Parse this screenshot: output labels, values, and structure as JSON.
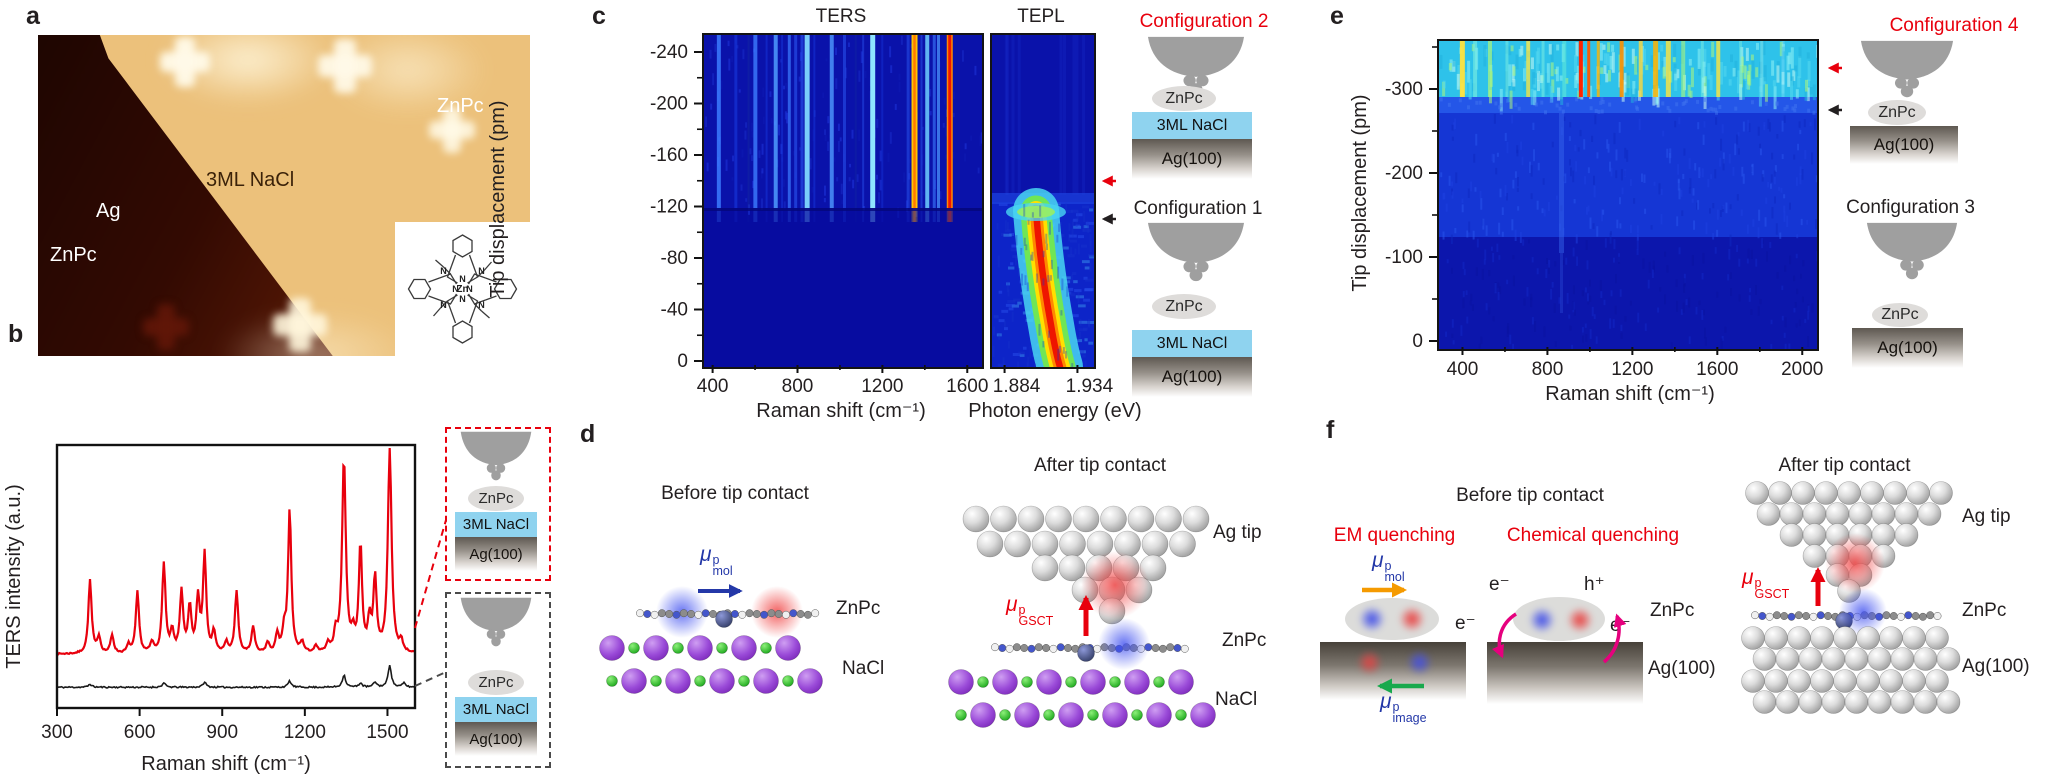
{
  "colors": {
    "accent_red": "#e8000d",
    "mu_blue": "#2438a8",
    "arrow_orange": "#f59a00",
    "arrow_green": "#18a94d",
    "arrow_magenta": "#e6007e",
    "nacl_blue": "#8fd3ef",
    "spectrum_red": "#e8000d",
    "spectrum_black": "#1a1a1a"
  },
  "panel_a": {
    "label": "a",
    "region_labels": {
      "znpc_top": "ZnPc",
      "nacl": "3ML NaCl",
      "ag": "Ag",
      "znpc_bottom": "ZnPc"
    },
    "inset": {
      "zn": "Zn",
      "n": "N"
    }
  },
  "panel_b": {
    "label": "b",
    "ylabel": "TERS intensity (a.u.)",
    "xlabel": "Raman shift (cm⁻¹)",
    "inset_contact": {
      "layers": [
        "ZnPc",
        "3ML NaCl",
        "Ag(100)"
      ]
    },
    "inset_retracted": {
      "layers": [
        "ZnPc",
        "3ML NaCl",
        "Ag(100)"
      ]
    }
  },
  "panel_c": {
    "label": "c",
    "title_ters": "TERS",
    "title_tepl": "TEPL",
    "ylabel": "Tip displacement (pm)",
    "xlabel_ters": "Raman shift (cm⁻¹)",
    "xlabel_tepl": "Photon energy (eV)",
    "config2": {
      "title": "Configuration 2",
      "layers": [
        "ZnPc",
        "3ML NaCl",
        "Ag(100)"
      ]
    },
    "config1": {
      "title": "Configuration 1",
      "layers": [
        "ZnPc",
        "3ML NaCl",
        "Ag(100)"
      ]
    }
  },
  "panel_d": {
    "label": "d",
    "before_title": "Before tip contact",
    "after_title": "After tip contact",
    "mu_mol": {
      "base": "μ",
      "sup": "p",
      "sub": "mol"
    },
    "mu_gsct": {
      "base": "μ",
      "sup": "p",
      "sub": "GSCT"
    },
    "labels_before": {
      "znpc": "ZnPc",
      "nacl": "NaCl"
    },
    "labels_after": {
      "ag_tip": "Ag tip",
      "znpc": "ZnPc",
      "nacl": "NaCl"
    }
  },
  "panel_e": {
    "label": "e",
    "ylabel": "Tip displacement (pm)",
    "xlabel": "Raman shift (cm⁻¹)",
    "config4": {
      "title": "Configuration 4",
      "layers": [
        "ZnPc",
        "Ag(100)"
      ]
    },
    "config3": {
      "title": "Configuration 3",
      "layers": [
        "ZnPc",
        "Ag(100)"
      ]
    }
  },
  "panel_f": {
    "label": "f",
    "before_title": "Before tip contact",
    "after_title": "After tip contact",
    "em_title": "EM quenching",
    "chem_title": "Chemical quenching",
    "mu_mol": {
      "base": "μ",
      "sup": "p",
      "sub": "mol"
    },
    "mu_image": {
      "base": "μ",
      "sup": "p",
      "sub": "image"
    },
    "mu_gsct": {
      "base": "μ",
      "sup": "p",
      "sub": "GSCT"
    },
    "electron": "e⁻",
    "hole": "h⁺",
    "labels": {
      "znpc": "ZnPc",
      "ag100": "Ag(100)",
      "ag_tip": "Ag tip",
      "znpc_after": "ZnPc",
      "ag100_after": "Ag(100)"
    }
  },
  "chart_data": [
    {
      "id": "b_spectra",
      "type": "line",
      "panel": "b",
      "xlabel": "Raman shift (cm⁻¹)",
      "ylabel": "TERS intensity (a.u.)",
      "xlim": [
        300,
        1600
      ],
      "xticks": [
        300,
        600,
        900,
        1200,
        1500
      ],
      "series": [
        {
          "name": "TERS after tip contact (Configuration 2)",
          "color": "#e8000d",
          "peaks": [
            [
              420,
              0.36
            ],
            [
              452,
              0.08
            ],
            [
              500,
              0.09
            ],
            [
              560,
              0.04
            ],
            [
              592,
              0.3
            ],
            [
              645,
              0.05
            ],
            [
              688,
              0.44
            ],
            [
              718,
              0.1
            ],
            [
              752,
              0.3
            ],
            [
              782,
              0.22
            ],
            [
              812,
              0.26
            ],
            [
              836,
              0.48
            ],
            [
              870,
              0.1
            ],
            [
              915,
              0.05
            ],
            [
              952,
              0.3
            ],
            [
              1012,
              0.13
            ],
            [
              1065,
              0.05
            ],
            [
              1100,
              0.09
            ],
            [
              1125,
              0.1
            ],
            [
              1145,
              0.7
            ],
            [
              1190,
              0.05
            ],
            [
              1240,
              0.03
            ],
            [
              1285,
              0.04
            ],
            [
              1312,
              0.09
            ],
            [
              1342,
              0.95
            ],
            [
              1375,
              0.08
            ],
            [
              1402,
              0.52
            ],
            [
              1435,
              0.15
            ],
            [
              1455,
              0.36
            ],
            [
              1508,
              1.0
            ],
            [
              1550,
              0.05
            ]
          ]
        },
        {
          "name": "TERS before tip contact (Configuration 1)",
          "color": "#1a1a1a",
          "peaks": [
            [
              420,
              0.015
            ],
            [
              688,
              0.02
            ],
            [
              836,
              0.025
            ],
            [
              1145,
              0.03
            ],
            [
              1342,
              0.06
            ],
            [
              1402,
              0.02
            ],
            [
              1455,
              0.025
            ],
            [
              1508,
              0.11
            ],
            [
              1560,
              0.02
            ]
          ]
        }
      ]
    },
    {
      "id": "c_ters_map",
      "type": "heatmap",
      "panel": "c",
      "title": "TERS",
      "xlabel": "Raman shift (cm⁻¹)",
      "ylabel": "Tip displacement (pm)",
      "xlim": [
        350,
        1660
      ],
      "xticks": [
        400,
        800,
        1200,
        1600
      ],
      "yticks": [
        -240,
        -200,
        -160,
        -120,
        -80,
        -40,
        0
      ],
      "contact_onset_pm": -125,
      "description": "Vertical ZnPc Raman streaks appear only after tip contact (tip displacement beyond about -125 pm)",
      "streaks": [
        [
          420,
          "#3c7dff",
          4,
          0.85
        ],
        [
          500,
          "#1a40e8",
          3,
          0.5
        ],
        [
          560,
          "#16309f",
          2,
          0.35
        ],
        [
          592,
          "#3c7dff",
          4,
          0.8
        ],
        [
          645,
          "#1a40e8",
          2,
          0.4
        ],
        [
          688,
          "#4f9bff",
          4,
          0.85
        ],
        [
          718,
          "#1a40e8",
          2,
          0.4
        ],
        [
          752,
          "#3c7dff",
          3,
          0.7
        ],
        [
          782,
          "#2a55f0",
          3,
          0.6
        ],
        [
          812,
          "#2a55f0",
          3,
          0.6
        ],
        [
          836,
          "#7fd8ff",
          5,
          0.95
        ],
        [
          870,
          "#1a40e8",
          2,
          0.4
        ],
        [
          952,
          "#4f9bff",
          4,
          0.8
        ],
        [
          1012,
          "#2a55f0",
          3,
          0.55
        ],
        [
          1065,
          "#16309f",
          2,
          0.3
        ],
        [
          1100,
          "#2a55f0",
          2,
          0.45
        ],
        [
          1145,
          "#8fe4ff",
          5,
          1
        ],
        [
          1190,
          "#1a40e8",
          2,
          0.35
        ],
        [
          1312,
          "#2a55f0",
          3,
          0.5
        ],
        [
          1342,
          "#ffc400",
          6,
          1
        ],
        [
          1342,
          "#ff7a00",
          2.5,
          1
        ],
        [
          1375,
          "#2a55f0",
          2,
          0.5
        ],
        [
          1402,
          "#6fd0ff",
          4,
          0.85
        ],
        [
          1435,
          "#3c7dff",
          3,
          0.6
        ],
        [
          1455,
          "#4f9bff",
          3,
          0.7
        ],
        [
          1508,
          "#ff8a00",
          6,
          1
        ],
        [
          1508,
          "#f01500",
          3,
          1
        ]
      ]
    },
    {
      "id": "c_tepl_map",
      "type": "heatmap",
      "panel": "c",
      "title": "TEPL",
      "xlabel": "Photon energy (eV)",
      "xlim": [
        1.874,
        1.944
      ],
      "xticks": [
        1.884,
        1.934
      ],
      "pl_peak_ev": 1.905,
      "description": "ZnPc photoluminescence band near 1.90 eV present before tip contact (0 to about -120 pm), quenched after contact"
    },
    {
      "id": "e_ters_map",
      "type": "heatmap",
      "panel": "e",
      "xlabel": "Raman shift (cm⁻¹)",
      "ylabel": "Tip displacement (pm)",
      "xlim": [
        280,
        2060
      ],
      "xticks": [
        400,
        800,
        1200,
        1600,
        2000
      ],
      "yticks": [
        -300,
        -200,
        -100,
        0
      ],
      "contact_onset_pm": -300,
      "description": "Broad emission with Raman streaks appears only after tip contact (beyond about -300 pm) for ZnPc adsorbed directly on Ag(100)",
      "streaks": [
        [
          390,
          "#ffe33c",
          5,
          0.95
        ],
        [
          450,
          "#7ff0e0",
          4,
          0.6
        ],
        [
          520,
          "#aef77a",
          4,
          0.7
        ],
        [
          600,
          "#7ff0e0",
          3,
          0.5
        ],
        [
          700,
          "#ffe33c",
          4,
          0.75
        ],
        [
          770,
          "#7ff0e0",
          3,
          0.5
        ],
        [
          870,
          "#5fe8d8",
          4,
          0.6
        ],
        [
          948,
          "#ff2400",
          4,
          1
        ],
        [
          985,
          "#ff5a00",
          3,
          0.95
        ],
        [
          1030,
          "#ffb300",
          3,
          0.8
        ],
        [
          1140,
          "#ff9000",
          4,
          0.9
        ],
        [
          1230,
          "#ffd83c",
          4,
          0.8
        ],
        [
          1300,
          "#ffb300",
          5,
          0.85
        ],
        [
          1360,
          "#ffe33c",
          5,
          0.8
        ],
        [
          1430,
          "#aef77a",
          4,
          0.6
        ],
        [
          1520,
          "#7ff0e0",
          3,
          0.5
        ],
        [
          1595,
          "#ffe33c",
          4,
          0.8
        ],
        [
          1700,
          "#7ff0e0",
          3,
          0.45
        ],
        [
          1800,
          "#9ff0ee",
          3,
          0.4
        ],
        [
          1900,
          "#8fe4ff",
          3,
          0.35
        ]
      ]
    }
  ]
}
